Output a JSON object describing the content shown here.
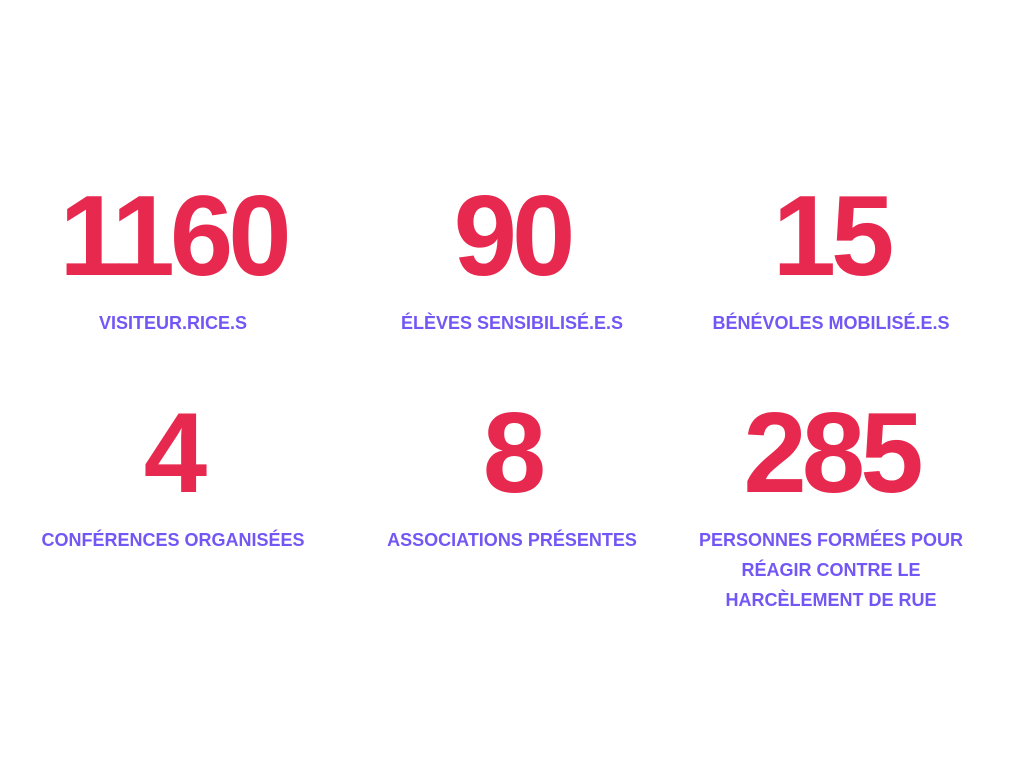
{
  "colors": {
    "number": "#E8294F",
    "label": "#7357F5",
    "background": "#FFFFFF"
  },
  "stats": [
    {
      "value": "1160",
      "label": "VISITEUR.RICE.S"
    },
    {
      "value": "90",
      "label": "ÉLÈVES SENSIBILISÉ.E.S"
    },
    {
      "value": "15",
      "label": "BÉNÉVOLES MOBILISÉ.E.S"
    },
    {
      "value": "4",
      "label": "CONFÉRENCES ORGANISÉES"
    },
    {
      "value": "8",
      "label": "ASSOCIATIONS PRÉSENTES"
    },
    {
      "value": "285",
      "label": "PERSONNES FORMÉES POUR RÉAGIR CONTRE LE HARCÈLEMENT DE RUE"
    }
  ]
}
